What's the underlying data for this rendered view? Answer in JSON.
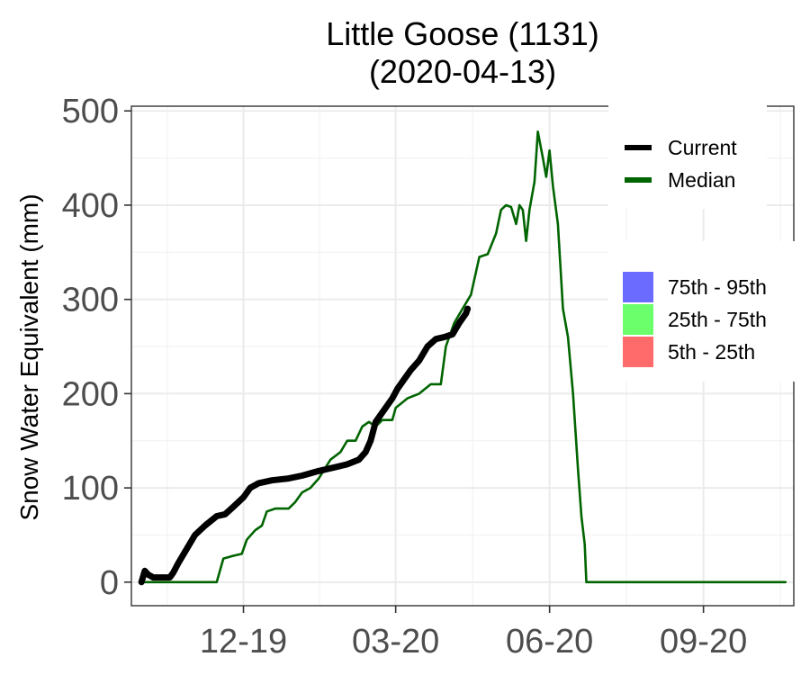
{
  "chart_data": {
    "type": "line",
    "title": "Little Goose (1131)",
    "subtitle": "(2020-04-13)",
    "xlabel": "",
    "ylabel": "Snow Water Equivalent (mm)",
    "ylim": [
      -25,
      505
    ],
    "xlim": [
      "2019-09-25",
      "2020-10-25"
    ],
    "grid": true,
    "y_ticks": [
      0,
      100,
      200,
      300,
      400,
      500
    ],
    "x_ticks": [
      {
        "date": "2019-12-01",
        "label": "12-19"
      },
      {
        "date": "2020-03-01",
        "label": "03-20"
      },
      {
        "date": "2020-06-01",
        "label": "06-20"
      },
      {
        "date": "2020-09-01",
        "label": "09-20"
      }
    ],
    "legend_placement": "right",
    "legend_lines": [
      {
        "name": "Current",
        "color": "#000000"
      },
      {
        "name": "Median",
        "color": "#006400"
      }
    ],
    "legend_bands": [
      {
        "name": "75th - 95th",
        "color": "#6b6bff"
      },
      {
        "name": "25th - 75th",
        "color": "#6bff6b"
      },
      {
        "name": "5th - 25th",
        "color": "#ff6b6b"
      }
    ],
    "series": [
      {
        "name": "Median",
        "color": "#006400",
        "points": [
          [
            "2019-10-01",
            0
          ],
          [
            "2019-11-15",
            0
          ],
          [
            "2019-11-19",
            25
          ],
          [
            "2019-11-25",
            28
          ],
          [
            "2019-11-30",
            30
          ],
          [
            "2019-12-03",
            45
          ],
          [
            "2019-12-08",
            55
          ],
          [
            "2019-12-12",
            60
          ],
          [
            "2019-12-15",
            75
          ],
          [
            "2019-12-20",
            78
          ],
          [
            "2019-12-28",
            78
          ],
          [
            "2020-01-01",
            85
          ],
          [
            "2020-01-05",
            95
          ],
          [
            "2020-01-10",
            100
          ],
          [
            "2020-01-15",
            110
          ],
          [
            "2020-01-22",
            130
          ],
          [
            "2020-01-28",
            138
          ],
          [
            "2020-02-01",
            150
          ],
          [
            "2020-02-06",
            150
          ],
          [
            "2020-02-10",
            165
          ],
          [
            "2020-02-14",
            170
          ],
          [
            "2020-02-18",
            165
          ],
          [
            "2020-02-22",
            172
          ],
          [
            "2020-02-28",
            172
          ],
          [
            "2020-03-01",
            185
          ],
          [
            "2020-03-08",
            195
          ],
          [
            "2020-03-15",
            200
          ],
          [
            "2020-03-22",
            210
          ],
          [
            "2020-03-28",
            210
          ],
          [
            "2020-03-31",
            250
          ],
          [
            "2020-04-05",
            275
          ],
          [
            "2020-04-10",
            290
          ],
          [
            "2020-04-15",
            305
          ],
          [
            "2020-04-20",
            345
          ],
          [
            "2020-04-25",
            348
          ],
          [
            "2020-04-30",
            370
          ],
          [
            "2020-05-03",
            395
          ],
          [
            "2020-05-06",
            400
          ],
          [
            "2020-05-09",
            398
          ],
          [
            "2020-05-12",
            380
          ],
          [
            "2020-05-14",
            400
          ],
          [
            "2020-05-16",
            395
          ],
          [
            "2020-05-18",
            362
          ],
          [
            "2020-05-20",
            395
          ],
          [
            "2020-05-23",
            425
          ],
          [
            "2020-05-25",
            478
          ],
          [
            "2020-05-28",
            450
          ],
          [
            "2020-05-30",
            430
          ],
          [
            "2020-06-01",
            458
          ],
          [
            "2020-06-03",
            420
          ],
          [
            "2020-06-06",
            380
          ],
          [
            "2020-06-09",
            290
          ],
          [
            "2020-06-12",
            260
          ],
          [
            "2020-06-15",
            200
          ],
          [
            "2020-06-18",
            120
          ],
          [
            "2020-06-20",
            70
          ],
          [
            "2020-06-22",
            40
          ],
          [
            "2020-06-23",
            0
          ],
          [
            "2020-10-20",
            0
          ]
        ]
      },
      {
        "name": "Current",
        "color": "#000000",
        "points": [
          [
            "2019-10-01",
            0
          ],
          [
            "2019-10-03",
            12
          ],
          [
            "2019-10-05",
            8
          ],
          [
            "2019-10-08",
            5
          ],
          [
            "2019-10-12",
            5
          ],
          [
            "2019-10-15",
            5
          ],
          [
            "2019-10-18",
            5
          ],
          [
            "2019-10-20",
            10
          ],
          [
            "2019-10-23",
            20
          ],
          [
            "2019-10-28",
            35
          ],
          [
            "2019-11-02",
            50
          ],
          [
            "2019-11-08",
            60
          ],
          [
            "2019-11-15",
            70
          ],
          [
            "2019-11-20",
            72
          ],
          [
            "2019-11-25",
            80
          ],
          [
            "2019-12-01",
            90
          ],
          [
            "2019-12-05",
            100
          ],
          [
            "2019-12-10",
            105
          ],
          [
            "2019-12-18",
            108
          ],
          [
            "2019-12-28",
            110
          ],
          [
            "2020-01-05",
            113
          ],
          [
            "2020-01-15",
            118
          ],
          [
            "2020-01-25",
            122
          ],
          [
            "2020-02-01",
            125
          ],
          [
            "2020-02-08",
            130
          ],
          [
            "2020-02-12",
            138
          ],
          [
            "2020-02-15",
            150
          ],
          [
            "2020-02-18",
            170
          ],
          [
            "2020-02-22",
            180
          ],
          [
            "2020-02-28",
            195
          ],
          [
            "2020-03-02",
            205
          ],
          [
            "2020-03-06",
            215
          ],
          [
            "2020-03-10",
            225
          ],
          [
            "2020-03-15",
            235
          ],
          [
            "2020-03-20",
            250
          ],
          [
            "2020-03-25",
            258
          ],
          [
            "2020-03-30",
            260
          ],
          [
            "2020-04-04",
            263
          ],
          [
            "2020-04-08",
            275
          ],
          [
            "2020-04-10",
            280
          ],
          [
            "2020-04-12",
            285
          ],
          [
            "2020-04-13",
            290
          ]
        ]
      }
    ]
  }
}
